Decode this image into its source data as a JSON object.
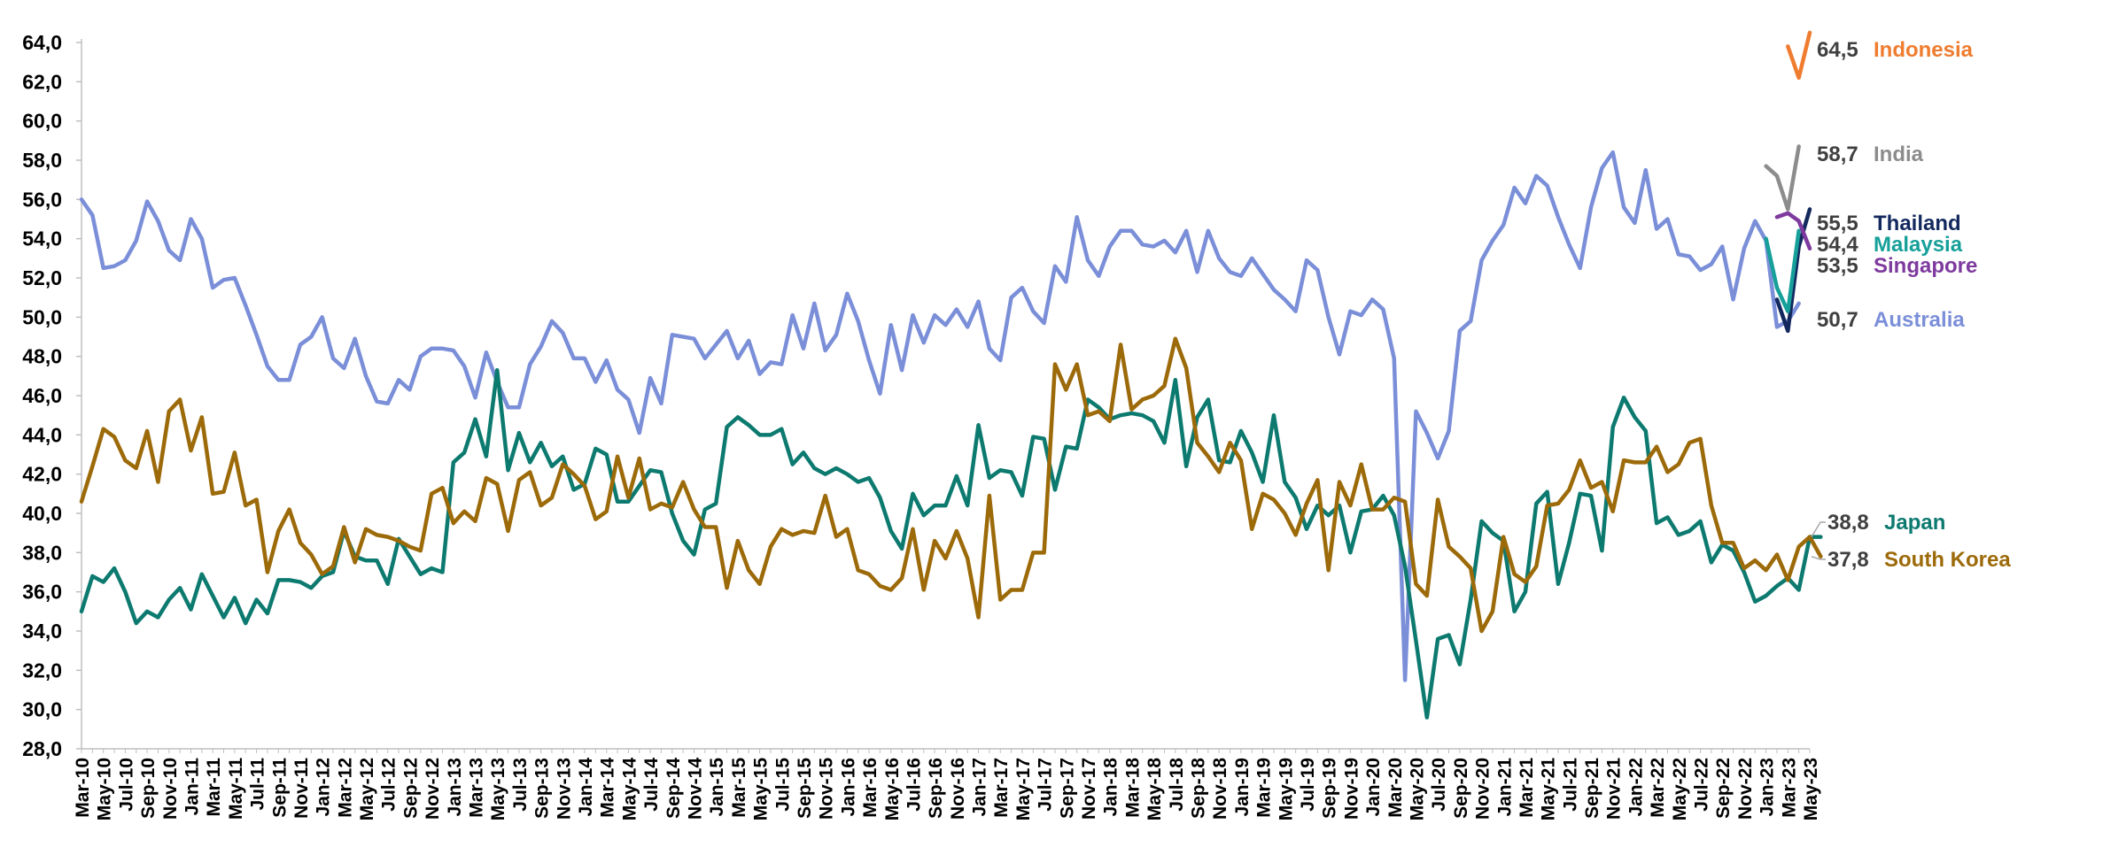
{
  "chart_data": {
    "type": "line",
    "title": "",
    "xlabel": "",
    "ylabel": "",
    "ylim": [
      28,
      64
    ],
    "y_ticks": [
      "28,0",
      "30,0",
      "32,0",
      "34,0",
      "36,0",
      "38,0",
      "40,0",
      "42,0",
      "44,0",
      "46,0",
      "48,0",
      "50,0",
      "52,0",
      "54,0",
      "56,0",
      "58,0",
      "60,0",
      "62,0",
      "64,0"
    ],
    "x_tick_labels": [
      "Mar-10",
      "May-10",
      "Jul-10",
      "Sep-10",
      "Nov-10",
      "Jan-11",
      "Mar-11",
      "May-11",
      "Jul-11",
      "Sep-11",
      "Nov-11",
      "Jan-12",
      "Mar-12",
      "May-12",
      "Jul-12",
      "Sep-12",
      "Nov-12",
      "Jan-13",
      "Mar-13",
      "May-13",
      "Jul-13",
      "Sep-13",
      "Nov-13",
      "Jan-14",
      "Mar-14",
      "May-14",
      "Jul-14",
      "Sep-14",
      "Nov-14",
      "Jan-15",
      "Mar-15",
      "May-15",
      "Jul-15",
      "Sep-15",
      "Nov-15",
      "Jan-16",
      "Mar-16",
      "May-16",
      "Jul-16",
      "Sep-16",
      "Nov-16",
      "Jan-17",
      "Mar-17",
      "May-17",
      "Jul-17",
      "Sep-17",
      "Nov-17",
      "Jan-18",
      "Mar-18",
      "May-18",
      "Jul-18",
      "Sep-18",
      "Nov-18",
      "Jan-19",
      "Mar-19",
      "May-19",
      "Jul-19",
      "Sep-19",
      "Nov-19",
      "Jan-20",
      "Mar-20",
      "May-20",
      "Jul-20",
      "Sep-20",
      "Nov-20",
      "Jan-21",
      "Mar-21",
      "May-21",
      "Jul-21",
      "Sep-21",
      "Nov-21",
      "Jan-22",
      "Mar-22",
      "May-22",
      "Jul-22",
      "Sep-22",
      "Nov-22",
      "Jan-23",
      "Mar-23",
      "May-23"
    ],
    "x_start": "Mar-10",
    "x_end": "May-23",
    "grid": false,
    "legend": "end-of-line labels, right side",
    "series": [
      {
        "name": "Australia",
        "label": "50,7",
        "color": "#7b8fd9",
        "start": "Mar-10",
        "values": [
          56.0,
          55.2,
          52.5,
          52.6,
          52.9,
          53.9,
          55.9,
          54.9,
          53.4,
          52.9,
          55.0,
          54.0,
          51.5,
          51.9,
          52.0,
          50.6,
          49.1,
          47.5,
          46.8,
          46.8,
          48.6,
          49.0,
          50.0,
          47.9,
          47.4,
          48.9,
          47.0,
          45.7,
          45.6,
          46.8,
          46.3,
          48.0,
          48.4,
          48.4,
          48.3,
          47.5,
          45.9,
          48.2,
          46.7,
          45.4,
          45.4,
          47.6,
          48.5,
          49.8,
          49.2,
          47.9,
          47.9,
          46.7,
          47.8,
          46.3,
          45.8,
          44.1,
          46.9,
          45.6,
          49.1,
          49.0,
          48.9,
          47.9,
          48.6,
          49.3,
          47.9,
          48.8,
          47.1,
          47.7,
          47.6,
          50.1,
          48.4,
          50.7,
          48.3,
          49.1,
          51.2,
          49.8,
          47.8,
          46.1,
          49.6,
          47.3,
          50.1,
          48.7,
          50.1,
          49.6,
          50.4,
          49.5,
          50.8,
          48.4,
          47.8,
          51.0,
          51.5,
          50.3,
          49.7,
          52.6,
          51.8,
          55.1,
          52.9,
          52.1,
          53.6,
          54.4,
          54.4,
          53.7,
          53.6,
          53.9,
          53.3,
          54.4,
          52.3,
          54.4,
          53.0,
          52.3,
          52.1,
          53.0,
          52.2,
          51.4,
          50.9,
          50.3,
          52.9,
          52.4,
          50.0,
          48.1,
          50.3,
          50.1,
          50.9,
          50.4,
          47.9,
          31.5,
          45.2,
          44.1,
          42.8,
          44.2,
          49.3,
          49.8,
          52.9,
          53.9,
          54.7,
          56.6,
          55.8,
          57.2,
          56.7,
          55.1,
          53.7,
          52.5,
          55.6,
          57.6,
          58.4,
          55.6,
          54.8,
          57.5,
          54.5,
          55.0,
          53.2,
          53.1,
          52.4,
          52.7,
          53.6,
          50.9,
          53.5,
          54.9,
          53.9,
          49.5,
          49.8,
          50.7
        ]
      },
      {
        "name": "Japan",
        "label": "38,8",
        "color": "#0d7a70",
        "start": "Mar-10",
        "values": [
          35.0,
          36.8,
          36.5,
          37.2,
          36.0,
          34.4,
          35.0,
          34.7,
          35.6,
          36.2,
          35.1,
          36.9,
          35.8,
          34.7,
          35.7,
          34.4,
          35.6,
          34.9,
          36.6,
          36.6,
          36.5,
          36.2,
          36.8,
          37.0,
          39.1,
          37.8,
          37.6,
          37.6,
          36.4,
          38.7,
          37.8,
          36.9,
          37.2,
          37.0,
          42.6,
          43.1,
          44.8,
          42.9,
          47.3,
          42.2,
          44.1,
          42.6,
          43.6,
          42.4,
          42.9,
          41.2,
          41.5,
          43.3,
          43.0,
          40.6,
          40.6,
          41.4,
          42.2,
          42.1,
          40.0,
          38.6,
          37.9,
          40.2,
          40.5,
          44.4,
          44.9,
          44.5,
          44.0,
          44.0,
          44.3,
          42.5,
          43.1,
          42.3,
          42.0,
          42.3,
          42.0,
          41.6,
          41.8,
          40.8,
          39.1,
          38.2,
          41.0,
          39.9,
          40.4,
          40.4,
          41.9,
          40.4,
          44.5,
          41.8,
          42.2,
          42.1,
          40.9,
          43.9,
          43.8,
          41.2,
          43.4,
          43.3,
          45.8,
          45.4,
          44.8,
          45.0,
          45.1,
          45.0,
          44.7,
          43.6,
          46.8,
          42.4,
          44.9,
          45.8,
          42.7,
          42.6,
          44.2,
          43.1,
          41.6,
          45.0,
          41.6,
          40.8,
          39.2,
          40.4,
          39.9,
          40.4,
          38.0,
          40.1,
          40.2,
          40.9,
          39.9,
          37.3,
          33.5,
          29.6,
          33.6,
          33.8,
          32.3,
          35.6,
          39.6,
          39.0,
          38.6,
          35.0,
          36.0,
          40.5,
          41.1,
          36.4,
          38.5,
          41.0,
          40.9,
          38.1,
          44.4,
          45.9,
          44.9,
          44.2,
          39.5,
          39.8,
          38.9,
          39.1,
          39.6,
          37.5,
          38.4,
          38.1,
          37.0,
          35.5,
          35.8,
          36.3,
          36.7,
          36.1,
          38.8,
          38.8
        ]
      },
      {
        "name": "South Korea",
        "label": "37,8",
        "color": "#9c6a09",
        "start": "Mar-10",
        "values": [
          40.6,
          42.4,
          44.3,
          43.9,
          42.7,
          42.3,
          44.2,
          41.6,
          45.2,
          45.8,
          43.2,
          44.9,
          41.0,
          41.1,
          43.1,
          40.4,
          40.7,
          37.0,
          39.1,
          40.2,
          38.5,
          37.9,
          36.9,
          37.3,
          39.3,
          37.5,
          39.2,
          38.9,
          38.8,
          38.6,
          38.3,
          38.1,
          41.0,
          41.3,
          39.5,
          40.1,
          39.6,
          41.8,
          41.5,
          39.1,
          41.7,
          42.1,
          40.4,
          40.8,
          42.5,
          42.0,
          41.4,
          39.7,
          40.1,
          42.9,
          40.8,
          42.8,
          40.2,
          40.5,
          40.3,
          41.6,
          40.2,
          39.3,
          39.3,
          36.2,
          38.6,
          37.1,
          36.4,
          38.3,
          39.2,
          38.9,
          39.1,
          39.0,
          40.9,
          38.8,
          39.2,
          37.1,
          36.9,
          36.3,
          36.1,
          36.7,
          39.2,
          36.1,
          38.6,
          37.7,
          39.1,
          37.7,
          34.7,
          40.9,
          35.6,
          36.1,
          36.1,
          38.0,
          38.0,
          47.6,
          46.3,
          47.6,
          45.0,
          45.2,
          44.7,
          48.6,
          45.3,
          45.8,
          46.0,
          46.5,
          48.9,
          47.4,
          43.6,
          42.9,
          42.1,
          43.6,
          42.7,
          39.2,
          41.0,
          40.7,
          40.0,
          38.9,
          40.5,
          41.7,
          37.1,
          41.6,
          40.4,
          42.5,
          40.2,
          40.2,
          40.8,
          40.6,
          36.4,
          35.8,
          40.7,
          38.3,
          37.8,
          37.2,
          34.0,
          35.0,
          38.8,
          36.9,
          36.5,
          37.3,
          40.4,
          40.5,
          41.2,
          42.7,
          41.3,
          41.6,
          40.1,
          42.7,
          42.6,
          42.6,
          43.4,
          42.1,
          42.5,
          43.6,
          43.8,
          40.4,
          38.5,
          38.5,
          37.2,
          37.6,
          37.1,
          37.9,
          36.6,
          38.3,
          38.8,
          37.8
        ]
      },
      {
        "name": "Indonesia",
        "label": "64,5",
        "color": "#ef7c2f",
        "start": "Mar-23",
        "values": [
          63.8,
          62.2,
          64.5
        ]
      },
      {
        "name": "India",
        "label": "58,7",
        "color": "#8c8c8c",
        "start": "Jan-23",
        "values": [
          57.7,
          57.2,
          55.5,
          58.7
        ]
      },
      {
        "name": "Thailand",
        "label": "55,5",
        "color": "#13295e",
        "start": "Feb-23",
        "values": [
          50.9,
          49.3,
          53.6,
          55.5
        ]
      },
      {
        "name": "Malaysia",
        "label": "54,4",
        "color": "#17a09a",
        "start": "Jan-23",
        "values": [
          54.0,
          51.5,
          50.3,
          54.4
        ]
      },
      {
        "name": "Singapore",
        "label": "53,5",
        "color": "#7e3a9e",
        "start": "Feb-23",
        "values": [
          55.1,
          55.3,
          54.9,
          53.5
        ]
      }
    ]
  }
}
